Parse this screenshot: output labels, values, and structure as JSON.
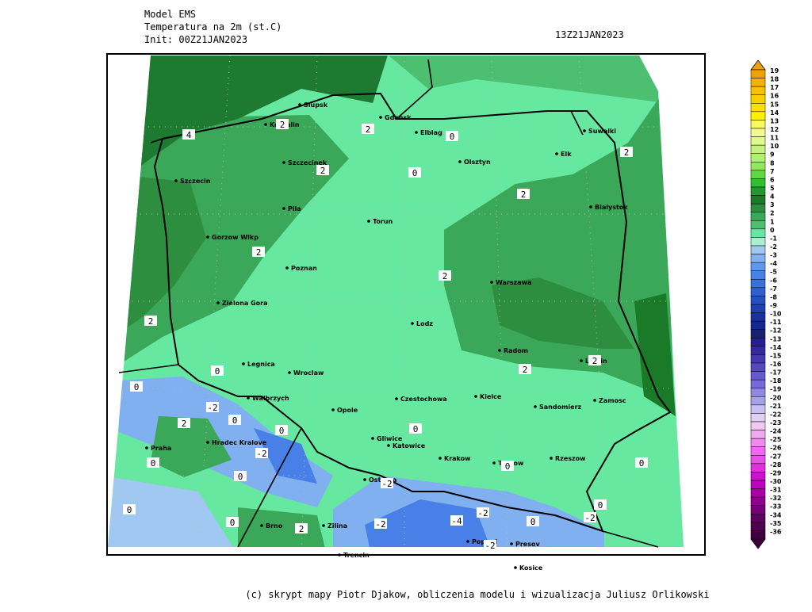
{
  "header": {
    "model": "Model EMS",
    "field": "Temperatura na 2m (st.C)",
    "init": "Init: 00Z21JAN2023",
    "valid": "13Z21JAN2023"
  },
  "map": {
    "cities": [
      "Slupsk",
      "Koszalin",
      "Gdansk",
      "Elblag",
      "Suwalki",
      "Elk",
      "Olsztyn",
      "Szczecinek",
      "Szczecin",
      "Torun",
      "Pila",
      "Bialystok",
      "Gorzow Wlkp",
      "Poznan",
      "Warszawa",
      "Zielona Gora",
      "Lodz",
      "Radom",
      "Legnica",
      "Wroclaw",
      "Lublin",
      "Kielce",
      "Walbrzych",
      "Czestochowa",
      "Opole",
      "Sandomierz",
      "Zamosc",
      "Gliwice",
      "Katowice",
      "Krakow",
      "Tarnow",
      "Rzeszow",
      "Praha",
      "Hradec Kralove",
      "Ostrava",
      "Brno",
      "Zilina",
      "Poprad",
      "Presov",
      "Kosice",
      "Trencin"
    ],
    "contour_labels": [
      4,
      2,
      2,
      2,
      0,
      0,
      2,
      2,
      2,
      2,
      2,
      0,
      2,
      2,
      0,
      -2,
      2,
      0,
      0,
      0,
      -2,
      0,
      0,
      -2,
      0,
      0,
      0,
      0,
      2,
      -2,
      -4,
      -2,
      0,
      0,
      -2,
      -2
    ]
  },
  "colorbar": {
    "levels": [
      19,
      18,
      17,
      16,
      15,
      14,
      13,
      12,
      11,
      10,
      9,
      8,
      7,
      6,
      5,
      4,
      3,
      2,
      1,
      0,
      -1,
      -2,
      -3,
      -4,
      -5,
      -6,
      -7,
      -8,
      -9,
      -10,
      -11,
      -12,
      -13,
      -14,
      -15,
      -16,
      -17,
      -18,
      -19,
      -20,
      -21,
      -22,
      -23,
      -24,
      -25,
      -26,
      -27,
      -28,
      -29,
      -30,
      -31,
      -32,
      -33,
      -34,
      -35,
      -36
    ],
    "colors": [
      "#f0a000",
      "#f5b000",
      "#f8c000",
      "#fad000",
      "#fce000",
      "#fef000",
      "#f8f860",
      "#f0fa90",
      "#e0fa90",
      "#c8f080",
      "#b0f070",
      "#90e858",
      "#60d840",
      "#30c030",
      "#209a30",
      "#1a7a28",
      "#2e8e40",
      "#3aa858",
      "#4cc070",
      "#66e8a0",
      "#a8f0d0",
      "#a0c8f0",
      "#80b0f0",
      "#6098f0",
      "#4880e8",
      "#3870e0",
      "#3060d0",
      "#2850c0",
      "#2040b0",
      "#1830a0",
      "#102890",
      "#182070",
      "#282090",
      "#3828a0",
      "#4838b0",
      "#5848c0",
      "#6858d0",
      "#7868d8",
      "#9088e0",
      "#a8a0e8",
      "#c8c0f0",
      "#e0d0f4",
      "#f0c8f0",
      "#f0a8f0",
      "#f088f0",
      "#f068f0",
      "#e850e8",
      "#e030e0",
      "#d010d0",
      "#c000c0",
      "#a800a8",
      "#900090",
      "#780078",
      "#600060",
      "#500050",
      "#400040"
    ]
  },
  "footer": "(c) skrypt mapy Piotr Djakow, obliczenia modelu i wizualizacja Juliusz Orlikowski"
}
